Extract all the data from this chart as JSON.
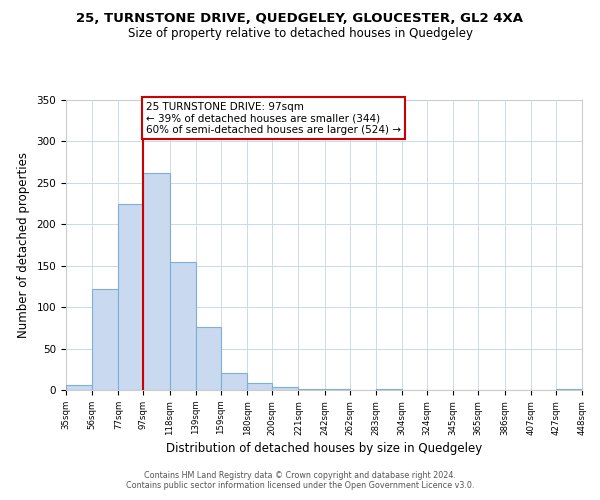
{
  "title_line1": "25, TURNSTONE DRIVE, QUEDGELEY, GLOUCESTER, GL2 4XA",
  "title_line2": "Size of property relative to detached houses in Quedgeley",
  "xlabel": "Distribution of detached houses by size in Quedgeley",
  "ylabel": "Number of detached properties",
  "bar_edges": [
    35,
    56,
    77,
    97,
    118,
    139,
    159,
    180,
    200,
    221,
    242,
    262,
    283,
    304,
    324,
    345,
    365,
    386,
    407,
    427,
    448
  ],
  "bar_heights": [
    6,
    122,
    224,
    262,
    155,
    76,
    21,
    9,
    4,
    1,
    1,
    0,
    1,
    0,
    0,
    0,
    0,
    0,
    0,
    1
  ],
  "bar_color": "#c9d9f0",
  "bar_edge_color": "#7fafd6",
  "vline_x": 97,
  "vline_color": "#cc0000",
  "annotation_text_line1": "25 TURNSTONE DRIVE: 97sqm",
  "annotation_text_line2": "← 39% of detached houses are smaller (344)",
  "annotation_text_line3": "60% of semi-detached houses are larger (524) →",
  "annotation_box_color": "#ffffff",
  "annotation_box_edge": "#cc0000",
  "ylim": [
    0,
    350
  ],
  "yticks": [
    0,
    50,
    100,
    150,
    200,
    250,
    300,
    350
  ],
  "footer_line1": "Contains HM Land Registry data © Crown copyright and database right 2024.",
  "footer_line2": "Contains public sector information licensed under the Open Government Licence v3.0.",
  "background_color": "#ffffff",
  "grid_color": "#ccd9e8"
}
